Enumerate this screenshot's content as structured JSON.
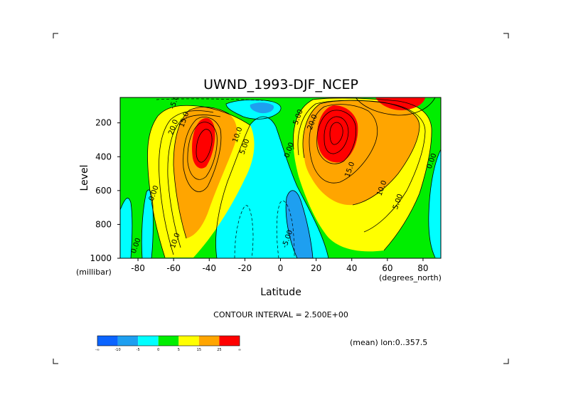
{
  "chart_data": {
    "type": "heatmap",
    "title": "UWND_1993-DJF_NCEP",
    "xlabel": "Latitude",
    "ylabel": "Level",
    "x_units": "(degrees_north)",
    "y_units": "(millibar)",
    "xlim": [
      -90,
      90
    ],
    "ylim": [
      1000,
      50
    ],
    "y_inverted": true,
    "x_ticks": [
      "-80",
      "-60",
      "-40",
      "-20",
      "0",
      "20",
      "40",
      "60",
      "80"
    ],
    "y_ticks": [
      "200",
      "400",
      "600",
      "800",
      "1000"
    ],
    "contour_interval_text": "CONTOUR INTERVAL = 2.500E+00",
    "mean_text": "(mean) lon:0..357.5",
    "colorbar": {
      "ticks": [
        "-∞",
        "-10",
        "-5",
        "0",
        "5",
        "15",
        "25",
        "∞"
      ],
      "colors": [
        "#0b64ff",
        "#1e9ff0",
        "#00ffff",
        "#00ee00",
        "#ffff00",
        "#ffa500",
        "#ff0000"
      ]
    },
    "contour_labels": [
      {
        "text": "-5.00",
        "lat": -58,
        "level": 70
      },
      {
        "text": "15.0",
        "lat": -53,
        "level": 185
      },
      {
        "text": "20.0",
        "lat": -59,
        "level": 230
      },
      {
        "text": "10.0",
        "lat": -23,
        "level": 275
      },
      {
        "text": "5.00",
        "lat": -19,
        "level": 345
      },
      {
        "text": "0.00",
        "lat": -70,
        "level": 620
      },
      {
        "text": "10.0",
        "lat": -58,
        "level": 900
      },
      {
        "text": "0.00",
        "lat": -80,
        "level": 930
      },
      {
        "text": "5.00",
        "lat": 11,
        "level": 170
      },
      {
        "text": "0.00",
        "lat": 6,
        "level": 365
      },
      {
        "text": "20.0",
        "lat": 19,
        "level": 200
      },
      {
        "text": "15.0",
        "lat": 40,
        "level": 480
      },
      {
        "text": "10.0",
        "lat": 58,
        "level": 590
      },
      {
        "text": "5.00",
        "lat": 67,
        "level": 670
      },
      {
        "text": "0.00",
        "lat": 86,
        "level": 430
      },
      {
        "text": "-5.00",
        "lat": 5,
        "level": 890
      }
    ]
  }
}
